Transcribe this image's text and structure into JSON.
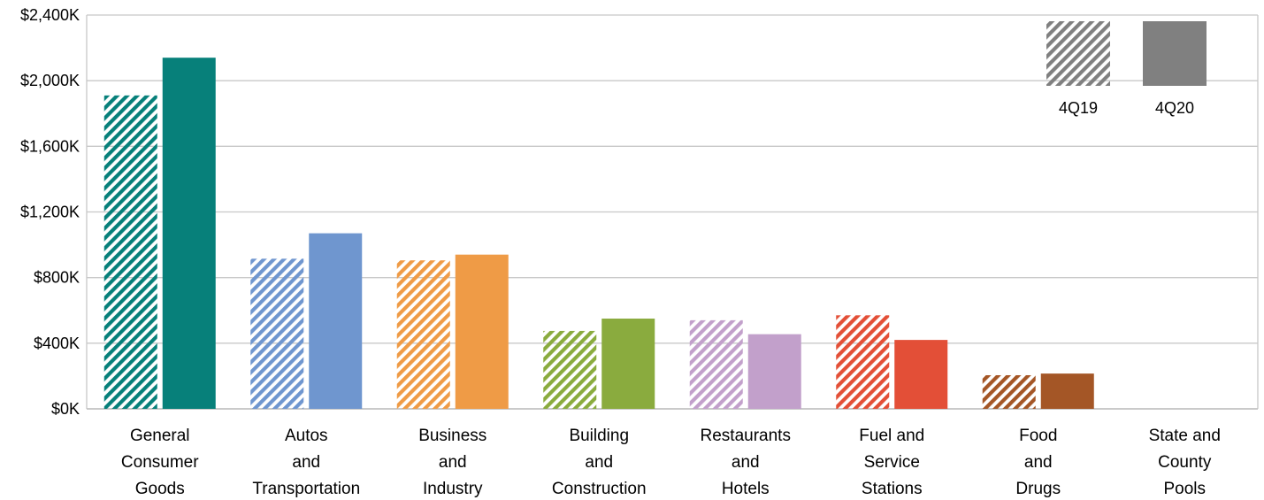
{
  "chart_data": {
    "type": "bar",
    "title": "",
    "xlabel": "",
    "ylabel": "",
    "ylim": [
      0,
      2400
    ],
    "grid": true,
    "legend_position": "top-right",
    "y_ticks": [
      "$0K",
      "$400K",
      "$800K",
      "$1,200K",
      "$1,600K",
      "$2,000K",
      "$2,400K"
    ],
    "categories": [
      [
        "General",
        "Consumer",
        "Goods"
      ],
      [
        "Autos",
        "and",
        "Transportation"
      ],
      [
        "Business",
        "and",
        "Industry"
      ],
      [
        "Building",
        "and",
        "Construction"
      ],
      [
        "Restaurants",
        "and",
        "Hotels"
      ],
      [
        "Fuel and",
        "Service",
        "Stations"
      ],
      [
        "Food",
        "and",
        "Drugs"
      ],
      [
        "State and",
        "County",
        "Pools"
      ]
    ],
    "colors": [
      "#07807a",
      "#6f96cf",
      "#ef9b46",
      "#8aab3e",
      "#c2a0cb",
      "#e34f37",
      "#a45626",
      "#808080"
    ],
    "series": [
      {
        "name": "4Q19",
        "pattern": "hatched",
        "values": [
          1910,
          915,
          905,
          475,
          540,
          570,
          205,
          0
        ]
      },
      {
        "name": "4Q20",
        "pattern": "solid",
        "values": [
          2140,
          1070,
          940,
          550,
          455,
          420,
          215,
          0
        ]
      }
    ],
    "legend": {
      "items": [
        {
          "label": "4Q19",
          "pattern": "hatched",
          "color": "#808080"
        },
        {
          "label": "4Q20",
          "pattern": "solid",
          "color": "#808080"
        }
      ]
    }
  }
}
